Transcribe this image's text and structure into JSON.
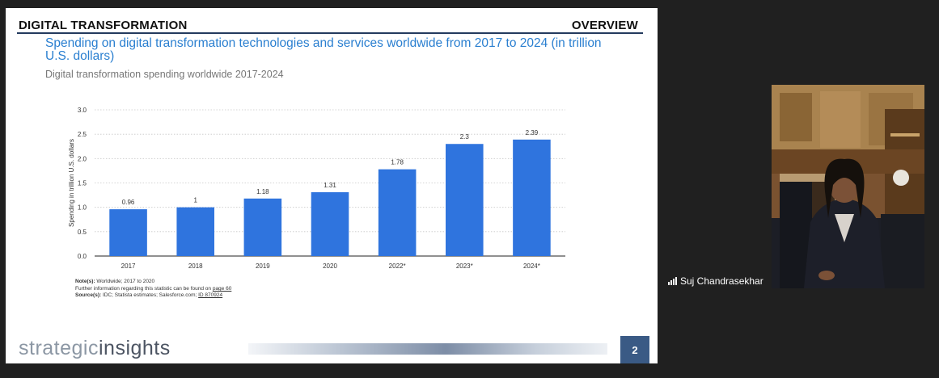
{
  "slide": {
    "header_left": "DIGITAL TRANSFORMATION",
    "header_right": "OVERVIEW",
    "chart_title": "Spending on digital transformation technologies and services worldwide from 2017 to 2024 (in trillion U.S. dollars)",
    "chart_subtitle": "Digital transformation spending worldwide 2017-2024",
    "note_label": "Note(s):",
    "note_text": "Worldwide; 2017 to 2020",
    "further_info_text": "Further information regarding this statistic can be found on",
    "further_info_link": "page 60",
    "source_label": "Source(s):",
    "source_text": "IDC; Statista estimates; Salesforce.com;",
    "source_link": "ID 870924",
    "logo_part1": "strategic",
    "logo_part2": "insights",
    "page_number": "2"
  },
  "chart_data": {
    "type": "bar",
    "ylabel": "Spending in trillion U.S. dollars",
    "categories": [
      "2017",
      "2018",
      "2019",
      "2020",
      "2022*",
      "2023*",
      "2024*"
    ],
    "values": [
      0.96,
      1,
      1.18,
      1.31,
      1.78,
      2.3,
      2.39
    ],
    "value_labels": [
      "0.96",
      "1",
      "1.18",
      "1.31",
      "1.78",
      "2.3",
      "2.39"
    ],
    "y_ticks": [
      "0.0",
      "0.5",
      "1.0",
      "1.5",
      "2.0",
      "2.5",
      "3.0"
    ],
    "ylim": [
      0,
      3
    ],
    "grid": true,
    "bar_color": "#2f74de"
  },
  "participant": {
    "name": "Suj Chandrasekhar"
  }
}
